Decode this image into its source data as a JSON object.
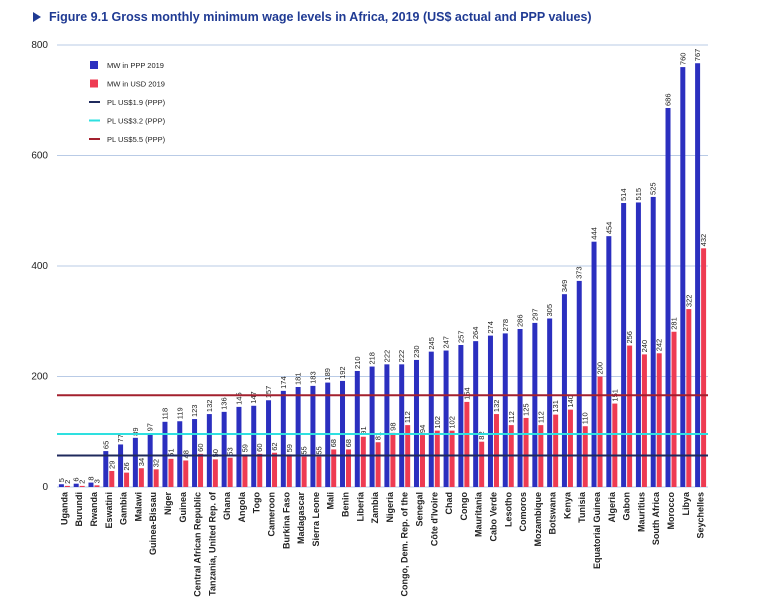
{
  "chart_data": {
    "type": "bar",
    "title": "Figure 9.1  Gross monthly minimum wage levels in Africa, 2019 (US$ actual and PPP values)",
    "categories": [
      "Uganda",
      "Burundi",
      "Rwanda",
      "Eswatini",
      "Gambia",
      "Malawi",
      "Guinea-Bissau",
      "Niger",
      "Guinea",
      "Central African Republic",
      "Tanzania, United Rep. of",
      "Ghana",
      "Angola",
      "Togo",
      "Cameroon",
      "Burkina Faso",
      "Madagascar",
      "Sierra Leone",
      "Mali",
      "Benin",
      "Liberia",
      "Zambia",
      "Nigeria",
      "Congo, Dem. Rep. of the",
      "Senegal",
      "Côte d'Ivoire",
      "Chad",
      "Congo",
      "Mauritania",
      "Cabo Verde",
      "Lesotho",
      "Comoros",
      "Mozambique",
      "Botswana",
      "Kenya",
      "Tunisia",
      "Equatorial Guinea",
      "Algeria",
      "Gabon",
      "Mauritius",
      "South Africa",
      "Morocco",
      "Libya",
      "Seychelles"
    ],
    "series": [
      {
        "name": "MW in PPP 2019",
        "color": "#2b2fbf",
        "values": [
          5,
          6,
          8,
          65,
          77,
          89,
          97,
          118,
          119,
          123,
          132,
          136,
          145,
          147,
          157,
          174,
          181,
          183,
          189,
          192,
          210,
          218,
          222,
          222,
          230,
          245,
          247,
          257,
          264,
          274,
          278,
          286,
          297,
          305,
          349,
          373,
          444,
          454,
          514,
          515,
          525,
          686,
          760,
          767
        ]
      },
      {
        "name": "MW in USD 2019",
        "color": "#ee3b52",
        "values": [
          2,
          2,
          3,
          29,
          26,
          34,
          32,
          51,
          48,
          60,
          50,
          53,
          59,
          60,
          62,
          59,
          55,
          55,
          68,
          68,
          91,
          81,
          98,
          112,
          94,
          102,
          102,
          154,
          82,
          132,
          112,
          125,
          112,
          131,
          140,
          110,
          200,
          151,
          256,
          240,
          242,
          281,
          322,
          432
        ]
      }
    ],
    "reference_lines": [
      {
        "name": "PL US$1.9 (PPP)",
        "color": "#1f2a5c",
        "value": 57
      },
      {
        "name": "PL US$3.2 (PPP)",
        "color": "#2ee0e0",
        "value": 96
      },
      {
        "name": "PL US$5.5 (PPP)",
        "color": "#a3202e",
        "value": 166
      }
    ],
    "ylim": [
      0,
      800
    ],
    "yticks": [
      0,
      200,
      400,
      600,
      800
    ],
    "grid": true,
    "legend": "upper left"
  }
}
